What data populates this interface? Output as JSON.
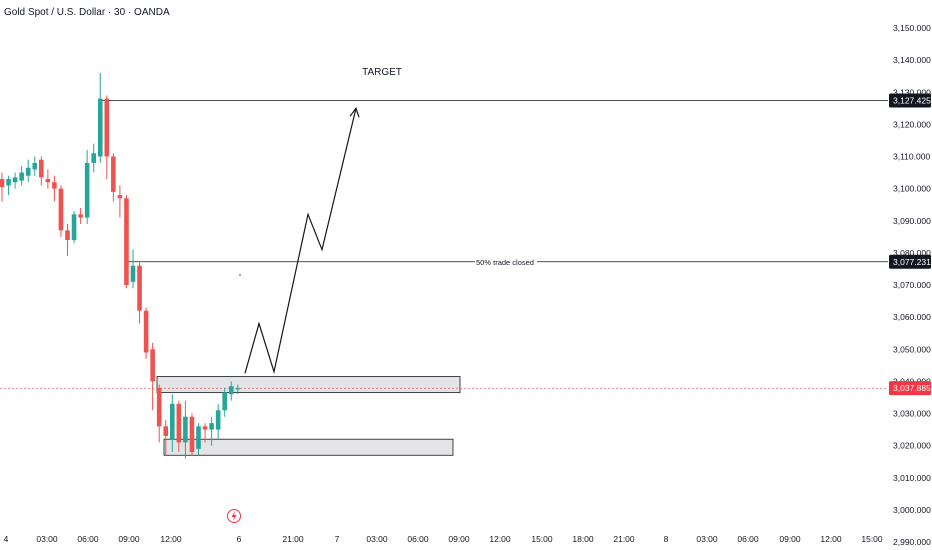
{
  "header": {
    "symbol_title": "Gold Spot / U.S. Dollar · 30 · OANDA"
  },
  "colors": {
    "up": "#26a69a",
    "down": "#ef5350",
    "line": "#131722",
    "zone_fill": "#e4e4e6",
    "current_price": "#f23645"
  },
  "chart_data": {
    "type": "candlestick",
    "title": "Gold Spot / U.S. Dollar · 30 · OANDA",
    "ylim": [
      2985,
      3155
    ],
    "y_ticks": [
      3150,
      3140,
      3130,
      3120,
      3110,
      3100,
      3090,
      3080,
      3070,
      3060,
      3050,
      3040,
      3030,
      3020,
      3010,
      3000,
      2990
    ],
    "y_tick_labels": [
      "3,150.000",
      "3,140.000",
      "3,130.000",
      "3,120.000",
      "3,110.000",
      "3,100.000",
      "3,090.000",
      "3,080.000",
      "3,070.000",
      "3,060.000",
      "3,050.000",
      "3,040.000",
      "3,030.000",
      "3,020.000",
      "3,010.000",
      "3,000.000",
      "2,990.000"
    ],
    "x_tick_labels": [
      "4",
      "03:00",
      "06:00",
      "09:00",
      "12:00",
      "6",
      "21:00",
      "7",
      "03:00",
      "06:00",
      "09:00",
      "12:00",
      "15:00",
      "18:00",
      "21:00",
      "8",
      "03:00",
      "06:00",
      "09:00",
      "12:00",
      "15:00"
    ],
    "candles": [
      {
        "o": 3103.0,
        "h": 3105.0,
        "l": 3096.0,
        "c": 3100.5
      },
      {
        "o": 3101.0,
        "h": 3104.0,
        "l": 3098.0,
        "c": 3103.0
      },
      {
        "o": 3102.0,
        "h": 3105.0,
        "l": 3100.0,
        "c": 3103.5
      },
      {
        "o": 3102.5,
        "h": 3107.0,
        "l": 3101.0,
        "c": 3105.0
      },
      {
        "o": 3104.0,
        "h": 3109.0,
        "l": 3102.0,
        "c": 3106.5
      },
      {
        "o": 3106.0,
        "h": 3110.0,
        "l": 3104.0,
        "c": 3108.0
      },
      {
        "o": 3109.0,
        "h": 3110.0,
        "l": 3101.0,
        "c": 3103.5
      },
      {
        "o": 3103.0,
        "h": 3106.0,
        "l": 3100.0,
        "c": 3102.0
      },
      {
        "o": 3102.0,
        "h": 3104.0,
        "l": 3096.0,
        "c": 3100.0
      },
      {
        "o": 3100.0,
        "h": 3101.0,
        "l": 3085.0,
        "c": 3087.0
      },
      {
        "o": 3087.0,
        "h": 3089.0,
        "l": 3079.0,
        "c": 3084.0
      },
      {
        "o": 3084.0,
        "h": 3093.0,
        "l": 3083.0,
        "c": 3092.0
      },
      {
        "o": 3092.0,
        "h": 3094.0,
        "l": 3089.0,
        "c": 3091.0
      },
      {
        "o": 3091.0,
        "h": 3112.0,
        "l": 3089.0,
        "c": 3108.0
      },
      {
        "o": 3108.0,
        "h": 3114.0,
        "l": 3105.0,
        "c": 3111.0
      },
      {
        "o": 3110.0,
        "h": 3136.0,
        "l": 3108.0,
        "c": 3128.0
      },
      {
        "o": 3128.0,
        "h": 3129.0,
        "l": 3103.0,
        "c": 3110.0
      },
      {
        "o": 3110.0,
        "h": 3111.0,
        "l": 3096.0,
        "c": 3099.0
      },
      {
        "o": 3098.0,
        "h": 3101.0,
        "l": 3091.0,
        "c": 3097.0
      },
      {
        "o": 3097.0,
        "h": 3098.0,
        "l": 3069.0,
        "c": 3070.0
      },
      {
        "o": 3071.0,
        "h": 3081.0,
        "l": 3069.0,
        "c": 3076.0
      },
      {
        "o": 3076.0,
        "h": 3077.0,
        "l": 3058.0,
        "c": 3062.0
      },
      {
        "o": 3062.0,
        "h": 3063.0,
        "l": 3047.0,
        "c": 3049.0
      },
      {
        "o": 3050.0,
        "h": 3052.0,
        "l": 3031.0,
        "c": 3040.0
      },
      {
        "o": 3038.0,
        "h": 3039.0,
        "l": 3021.0,
        "c": 3026.0
      },
      {
        "o": 3026.0,
        "h": 3028.0,
        "l": 3017.0,
        "c": 3023.0
      },
      {
        "o": 3022.0,
        "h": 3036.0,
        "l": 3018.0,
        "c": 3033.0
      },
      {
        "o": 3033.0,
        "h": 3034.0,
        "l": 3018.0,
        "c": 3021.0
      },
      {
        "o": 3021.0,
        "h": 3034.0,
        "l": 3016.0,
        "c": 3029.0
      },
      {
        "o": 3029.0,
        "h": 3030.0,
        "l": 3017.0,
        "c": 3018.0
      },
      {
        "o": 3019.0,
        "h": 3027.0,
        "l": 3017.0,
        "c": 3026.0
      },
      {
        "o": 3026.0,
        "h": 3027.0,
        "l": 3021.0,
        "c": 3025.0
      },
      {
        "o": 3025.0,
        "h": 3029.0,
        "l": 3020.0,
        "c": 3027.0
      },
      {
        "o": 3025.0,
        "h": 3033.0,
        "l": 3022.0,
        "c": 3031.0
      },
      {
        "o": 3031.0,
        "h": 3038.0,
        "l": 3029.0,
        "c": 3036.5
      },
      {
        "o": 3036.0,
        "h": 3040.0,
        "l": 3034.0,
        "c": 3038.5
      },
      {
        "o": 3037.5,
        "h": 3039.0,
        "l": 3036.0,
        "c": 3037.9
      }
    ],
    "horizontal_lines": [
      {
        "price": 3127.425,
        "label": "3,127.425"
      },
      {
        "price": 3077.231,
        "label": "3,077.231",
        "annotation": "50% trade closed"
      }
    ],
    "current_price": {
      "price": 3037.885,
      "label": "3,037.885"
    },
    "zones": [
      {
        "top": 3041.5,
        "bottom": 3036.5
      },
      {
        "top": 3022.0,
        "bottom": 3017.0
      }
    ],
    "projection_path_prices": [
      3042.5,
      3058.0,
      3043.0,
      3092.0,
      3081.0,
      3125.0
    ],
    "annotations": {
      "target": "TARGET",
      "trade_note": "50% trade closed"
    }
  }
}
